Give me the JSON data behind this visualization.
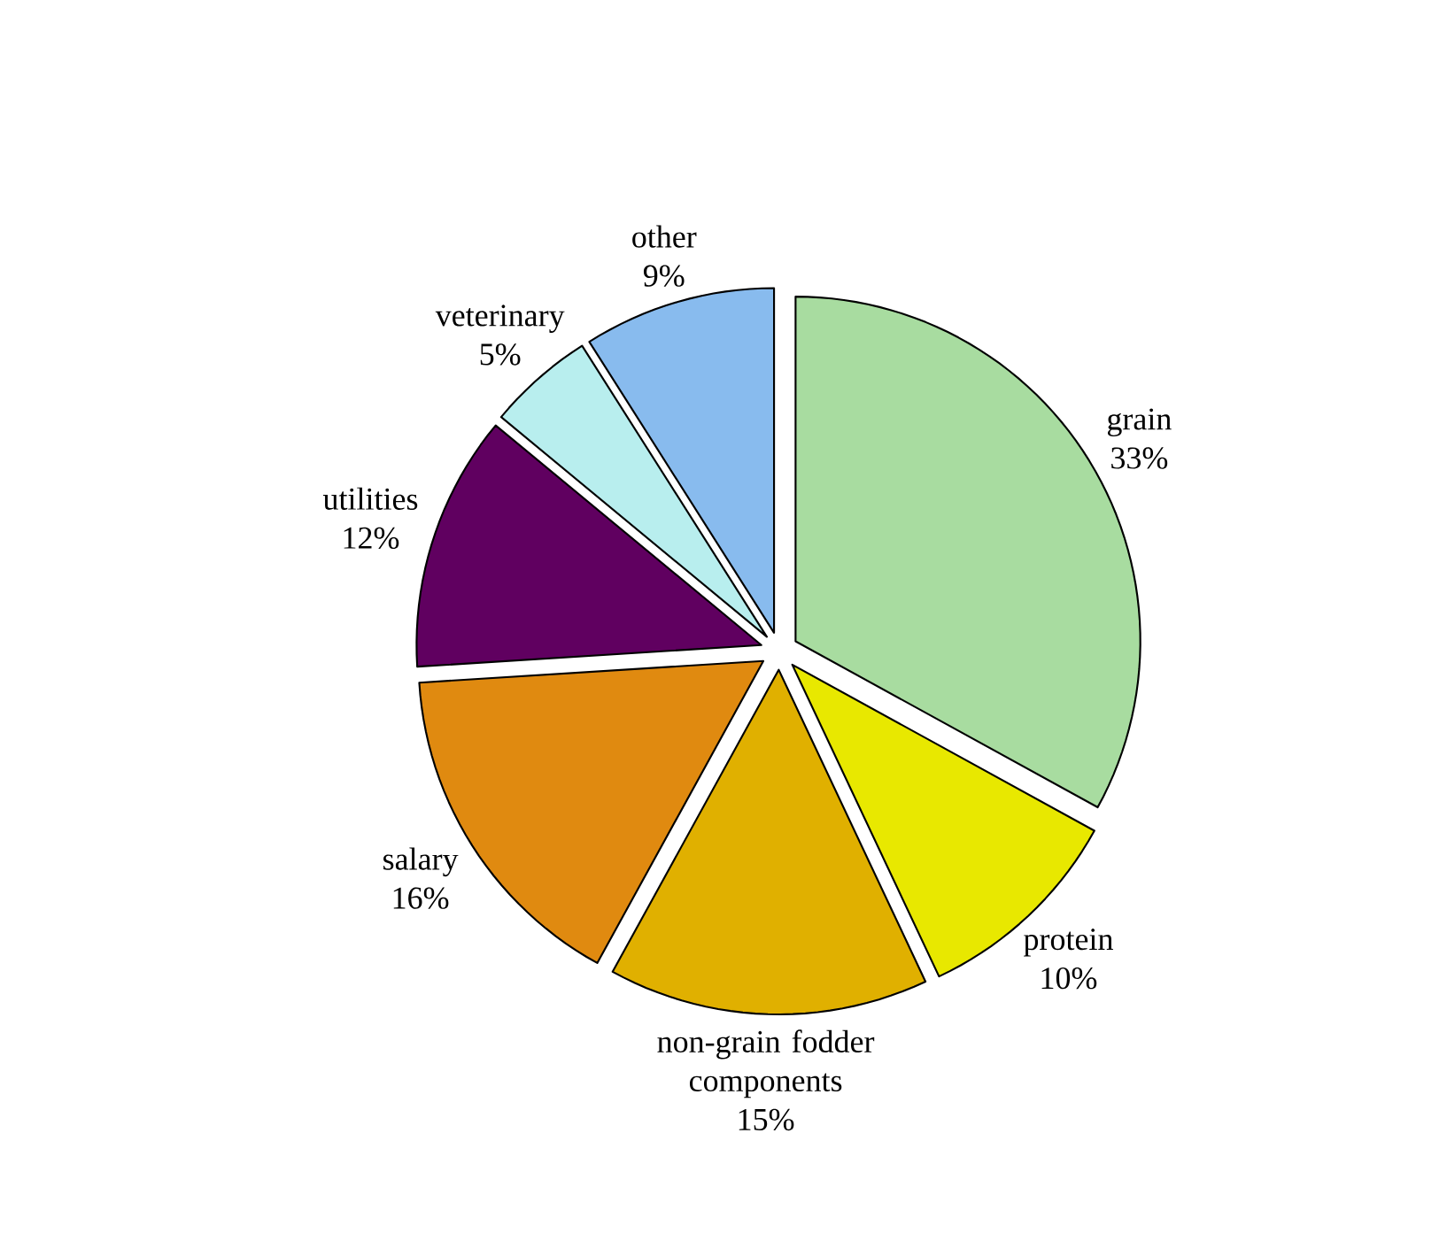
{
  "chart_data": {
    "type": "pie",
    "categories": [
      "grain",
      "protein",
      "non-grain fodder components",
      "salary",
      "utilities",
      "veterinary",
      "other"
    ],
    "values": [
      33,
      10,
      15,
      16,
      12,
      5,
      9
    ],
    "value_labels": [
      "33%",
      "10%",
      "15%",
      "16%",
      "12%",
      "5%",
      "9%"
    ],
    "colors": [
      "#a8dca0",
      "#e8e800",
      "#e0b000",
      "#e08a10",
      "#600060",
      "#b8eeee",
      "#88bbee"
    ]
  }
}
